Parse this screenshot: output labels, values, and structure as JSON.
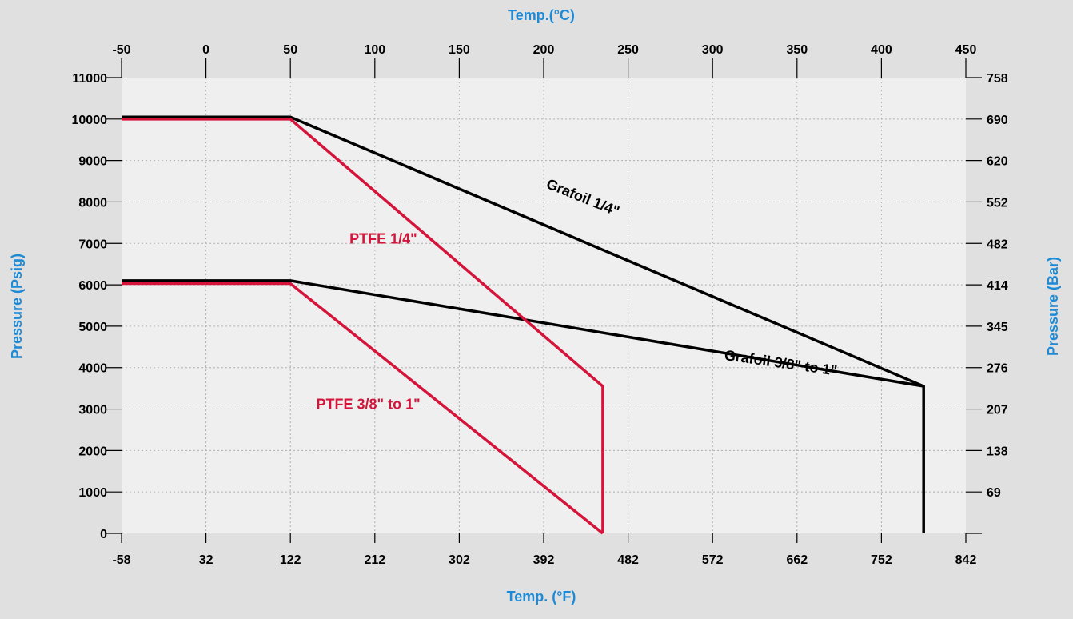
{
  "chart_data": {
    "type": "line",
    "title": "",
    "xlabel_bottom": "Temp. (°F)",
    "xlabel_top": "Temp.(°C)",
    "ylabel_left": "Pressure (Psig)",
    "ylabel_right": "Pressure (Bar)",
    "xlim_f": [
      -58,
      842
    ],
    "ylim_psig": [
      0,
      11000
    ],
    "x_ticks_f": [
      "-58",
      "32",
      "122",
      "212",
      "302",
      "392",
      "482",
      "572",
      "662",
      "752",
      "842"
    ],
    "x_ticks_c": [
      "-50",
      "0",
      "50",
      "100",
      "150",
      "200",
      "250",
      "300",
      "350",
      "400",
      "450"
    ],
    "y_ticks_left": [
      "0",
      "1000",
      "2000",
      "3000",
      "4000",
      "5000",
      "6000",
      "7000",
      "8000",
      "9000",
      "10000",
      "11000"
    ],
    "y_ticks_right": [
      "",
      "69",
      "138",
      "207",
      "276",
      "345",
      "414",
      "482",
      "552",
      "620",
      "690",
      "758"
    ],
    "grid": true,
    "background": "#efefef",
    "colors": {
      "ptfe": "#d4143a",
      "grafoil": "#000000",
      "axis_title": "#1e8ad6"
    },
    "series": [
      {
        "name": "Grafoil 1/4\"",
        "color": "#000000",
        "x": [
          -58,
          122,
          797,
          797
        ],
        "y": [
          10050,
          10050,
          3550,
          0
        ]
      },
      {
        "name": "Grafoil 3/8\" to 1\"",
        "color": "#000000",
        "x": [
          -58,
          122,
          797
        ],
        "y": [
          6100,
          6100,
          3550
        ]
      },
      {
        "name": "PTFE 1/4\"",
        "color": "#d4143a",
        "x": [
          -58,
          122,
          455,
          455
        ],
        "y": [
          10000,
          10000,
          3550,
          0
        ]
      },
      {
        "name": "PTFE 3/8\" to 1\"",
        "color": "#d4143a",
        "x": [
          -58,
          122,
          455
        ],
        "y": [
          6030,
          6030,
          0
        ]
      }
    ],
    "annotations": [
      {
        "text": "Grafoil 1/4\"",
        "x": 432,
        "y": 8000,
        "angle": 22,
        "color": "#000000"
      },
      {
        "text": "PTFE 1/4\"",
        "x": 221,
        "y": 7000,
        "angle": 0,
        "color": "#d4143a"
      },
      {
        "text": "Grafoil 3/8\" to 1\"",
        "x": 644,
        "y": 4000,
        "angle": 8,
        "color": "#000000"
      },
      {
        "text": "PTFE 3/8\" to 1\"",
        "x": 205,
        "y": 3000,
        "angle": 0,
        "color": "#d4143a"
      }
    ]
  }
}
